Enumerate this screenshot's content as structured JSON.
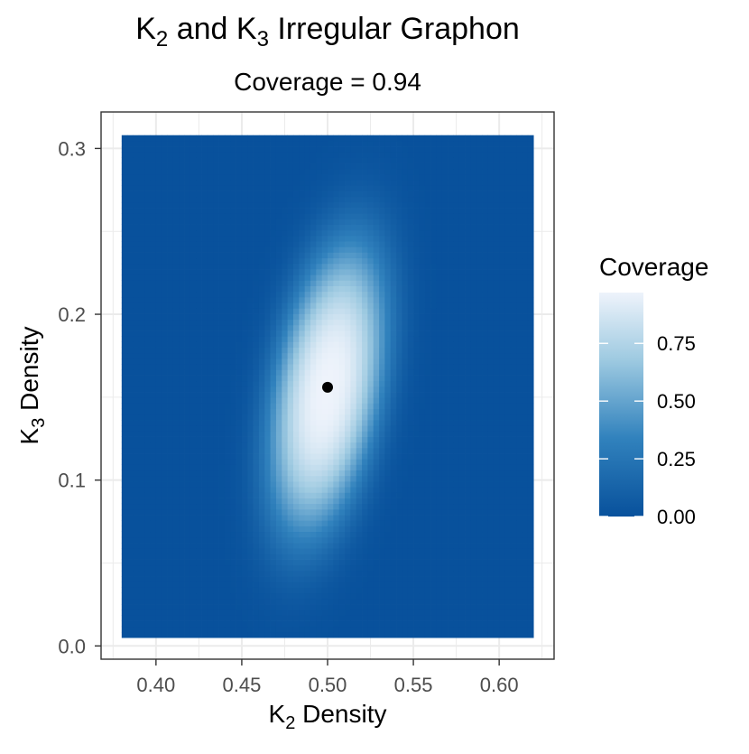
{
  "chart_data": {
    "type": "heatmap",
    "title": {
      "t1": "K",
      "s1": "2",
      "t2": " and K",
      "s2": "3",
      "t3": " Irregular Graphon"
    },
    "subtitle": "Coverage = 0.94",
    "xlabel": {
      "main": "K",
      "sub": "2",
      "rest": " Density"
    },
    "ylabel": {
      "main": "K",
      "sub": "3",
      "rest": " Density"
    },
    "xlim": [
      0.368,
      0.632
    ],
    "ylim": [
      -0.008,
      0.322
    ],
    "x_ticks": [
      0.4,
      0.45,
      0.5,
      0.55,
      0.6
    ],
    "x_tick_labels": [
      "0.40",
      "0.45",
      "0.50",
      "0.55",
      "0.60"
    ],
    "y_ticks": [
      0.0,
      0.1,
      0.2,
      0.3
    ],
    "y_tick_labels": [
      "0.0",
      "0.1",
      "0.2",
      "0.3"
    ],
    "x_minor_ticks": [
      0.375,
      0.425,
      0.475,
      0.525,
      0.575,
      0.625
    ],
    "y_minor_ticks": [
      0.05,
      0.15,
      0.25
    ],
    "grid": true,
    "heatmap_extent": {
      "x": [
        0.38,
        0.62
      ],
      "y": [
        0.005,
        0.308
      ]
    },
    "coverage_surface": {
      "center_x": 0.5,
      "center_y": 0.155,
      "peak_coverage": 0.97,
      "half_width_x": 0.034,
      "half_height_y": 0.095,
      "tilt_slope_x_per_y": 0.15
    },
    "point": {
      "x": 0.5,
      "y": 0.156
    },
    "legend": {
      "title": "Coverage",
      "position": "right",
      "range": [
        0,
        0.97
      ],
      "ticks": [
        0.0,
        0.25,
        0.5,
        0.75
      ],
      "tick_labels": [
        "0.00",
        "0.25",
        "0.50",
        "0.75"
      ]
    },
    "colors": {
      "low": "#08519c",
      "mid1": "#3182bd",
      "mid2": "#9ecae1",
      "high": "#eef3fb",
      "panel_bg": "#ffffff",
      "grid": "#ebebeb",
      "border": "#333333",
      "point": "#000000"
    }
  }
}
